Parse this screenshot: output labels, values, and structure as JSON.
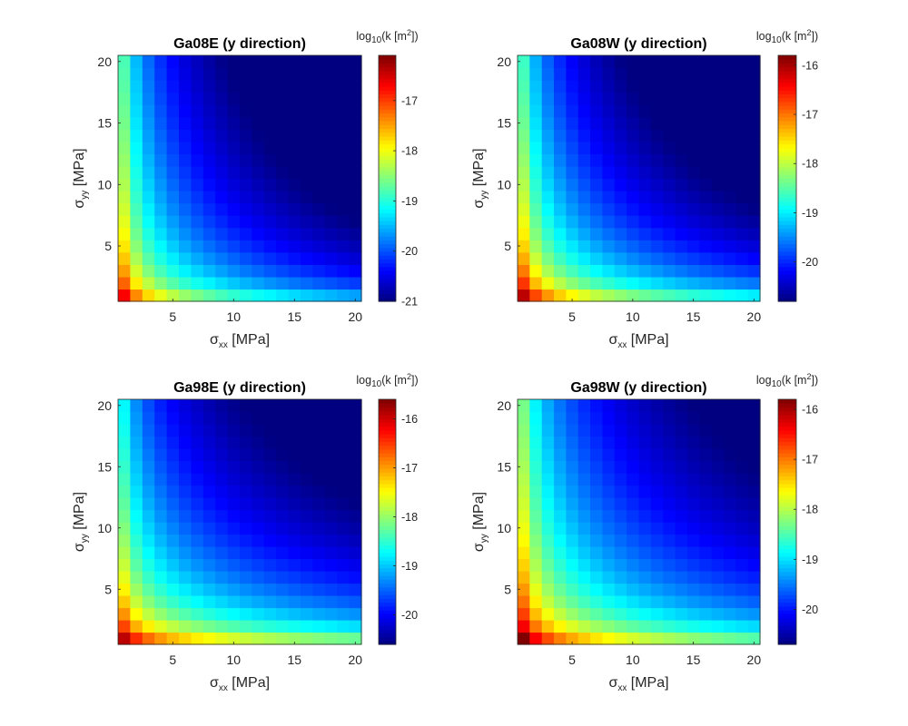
{
  "chart_data": [
    {
      "type": "heatmap",
      "title": "Ga08E (y direction)",
      "xlabel": {
        "symbol": "σ",
        "sub": "xx",
        "unit": " [MPa]"
      },
      "ylabel": {
        "symbol": "σ",
        "sub": "yy",
        "unit": " [MPa]"
      },
      "x": {
        "min": 1,
        "max": 20,
        "count": 20,
        "ticks": [
          5,
          10,
          15,
          20
        ]
      },
      "y": {
        "min": 1,
        "max": 20,
        "count": 20,
        "ticks": [
          5,
          10,
          15,
          20
        ]
      },
      "values_model": {
        "form": "A + B*log10(sxx) + C*log10(syy)",
        "A": -16.7,
        "B": -2.24,
        "C": -1.62
      },
      "colorbar": {
        "title": {
          "pre": "log",
          "sub": "10",
          "mid": "(k [m",
          "sup": "2",
          "post": "])"
        },
        "min": -21,
        "max": -16.1,
        "ticks": [
          -21,
          -20,
          -19,
          -18,
          -17
        ],
        "colormap": "jet"
      }
    },
    {
      "type": "heatmap",
      "title": "Ga08W (y direction)",
      "xlabel": {
        "symbol": "σ",
        "sub": "xx",
        "unit": " [MPa]"
      },
      "ylabel": {
        "symbol": "σ",
        "sub": "yy",
        "unit": " [MPa]"
      },
      "x": {
        "min": 1,
        "max": 20,
        "count": 20,
        "ticks": [
          5,
          10,
          15,
          20
        ]
      },
      "y": {
        "min": 1,
        "max": 20,
        "count": 20,
        "ticks": [
          5,
          10,
          15,
          20
        ]
      },
      "values_model": {
        "form": "A + B*log10(sxx) + C*log10(syy)",
        "A": -16.1,
        "B": -2.23,
        "C": -1.95
      },
      "colorbar": {
        "title": {
          "pre": "log",
          "sub": "10",
          "mid": "(k [m",
          "sup": "2",
          "post": "])"
        },
        "min": -20.8,
        "max": -15.8,
        "ticks": [
          -20,
          -19,
          -18,
          -17,
          -16
        ],
        "colormap": "jet"
      }
    },
    {
      "type": "heatmap",
      "title": "Ga98E (y direction)",
      "xlabel": {
        "symbol": "σ",
        "sub": "xx",
        "unit": " [MPa]"
      },
      "ylabel": {
        "symbol": "σ",
        "sub": "yy",
        "unit": " [MPa]"
      },
      "x": {
        "min": 1,
        "max": 20,
        "count": 20,
        "ticks": [
          5,
          10,
          15,
          20
        ]
      },
      "y": {
        "min": 1,
        "max": 20,
        "count": 20,
        "ticks": [
          5,
          10,
          15,
          20
        ]
      },
      "values_model": {
        "form": "A + B*log10(sxx) + C*log10(syy)",
        "A": -15.9,
        "B": -1.78,
        "C": -2.19
      },
      "colorbar": {
        "title": {
          "pre": "log",
          "sub": "10",
          "mid": "(k [m",
          "sup": "2",
          "post": "])"
        },
        "min": -20.6,
        "max": -15.6,
        "ticks": [
          -20,
          -19,
          -18,
          -17,
          -16
        ],
        "colormap": "jet"
      }
    },
    {
      "type": "heatmap",
      "title": "Ga98W (y direction)",
      "xlabel": {
        "symbol": "σ",
        "sub": "xx",
        "unit": " [MPa]"
      },
      "ylabel": {
        "symbol": "σ",
        "sub": "yy",
        "unit": " [MPa]"
      },
      "x": {
        "min": 1,
        "max": 20,
        "count": 20,
        "ticks": [
          5,
          10,
          15,
          20
        ]
      },
      "y": {
        "min": 1,
        "max": 20,
        "count": 20,
        "ticks": [
          5,
          10,
          15,
          20
        ]
      },
      "values_model": {
        "form": "A + B*log10(sxx) + C*log10(syy)",
        "A": -15.8,
        "B": -2.04,
        "C": -1.92
      },
      "colorbar": {
        "title": {
          "pre": "log",
          "sub": "10",
          "mid": "(k [m",
          "sup": "2",
          "post": "])"
        },
        "min": -20.7,
        "max": -15.8,
        "ticks": [
          -20,
          -19,
          -18,
          -17,
          -16
        ],
        "colormap": "jet"
      }
    }
  ]
}
